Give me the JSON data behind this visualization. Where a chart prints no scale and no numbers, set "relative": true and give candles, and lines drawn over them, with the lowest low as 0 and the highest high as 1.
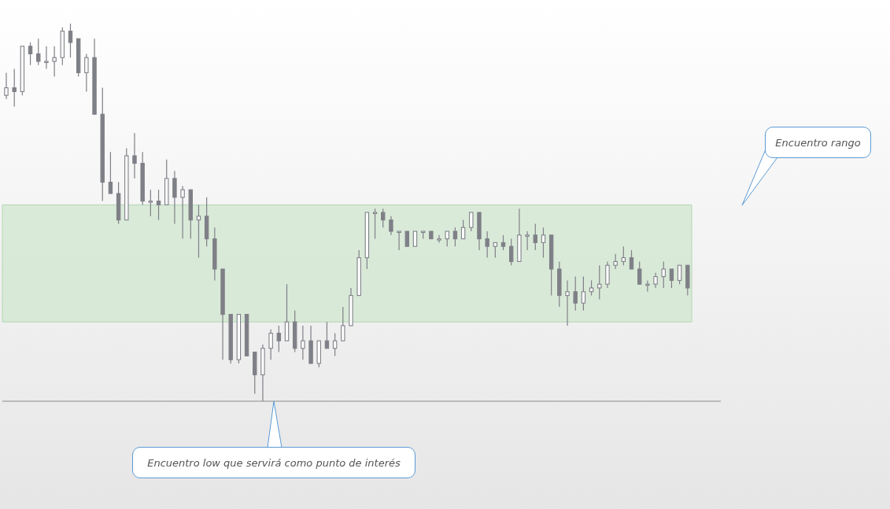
{
  "chart_data": {
    "type": "candlestick",
    "relative": true,
    "color": "#7f8087",
    "categories": [
      null,
      null,
      null,
      null,
      null,
      null,
      null,
      null,
      null,
      null,
      null,
      null,
      null,
      null,
      null,
      null,
      null,
      null,
      null,
      null,
      null,
      null,
      null,
      null,
      null,
      null,
      null,
      null,
      null,
      null,
      null,
      null,
      null,
      null,
      null,
      null,
      null,
      null,
      null,
      null,
      null,
      null,
      null,
      null,
      null,
      null,
      null,
      null,
      null,
      null,
      null,
      null,
      null,
      null,
      null,
      null,
      null,
      null,
      null,
      null,
      null,
      null,
      null,
      null,
      null,
      null,
      null,
      null,
      null,
      null,
      null,
      null,
      null,
      null,
      null,
      null,
      null,
      null,
      null,
      null,
      null,
      null,
      null,
      null,
      null,
      null
    ],
    "ohlc": [
      [
        0.81,
        0.87,
        0.8,
        0.83
      ],
      [
        0.83,
        0.88,
        0.78,
        0.82
      ],
      [
        0.82,
        0.94,
        0.81,
        0.94
      ],
      [
        0.94,
        0.95,
        0.89,
        0.92
      ],
      [
        0.92,
        0.96,
        0.89,
        0.9
      ],
      [
        0.9,
        0.94,
        0.88,
        0.9
      ],
      [
        0.9,
        0.94,
        0.86,
        0.91
      ],
      [
        0.91,
        0.99,
        0.89,
        0.98
      ],
      [
        0.98,
        1.0,
        0.91,
        0.95
      ],
      [
        0.96,
        0.96,
        0.86,
        0.87
      ],
      [
        0.87,
        0.92,
        0.82,
        0.91
      ],
      [
        0.91,
        0.96,
        0.76,
        0.76
      ],
      [
        0.76,
        0.83,
        0.53,
        0.58
      ],
      [
        0.58,
        0.66,
        0.55,
        0.55
      ],
      [
        0.55,
        0.58,
        0.47,
        0.48
      ],
      [
        0.48,
        0.67,
        0.48,
        0.65
      ],
      [
        0.65,
        0.71,
        0.59,
        0.63
      ],
      [
        0.63,
        0.66,
        0.52,
        0.53
      ],
      [
        0.53,
        0.56,
        0.49,
        0.53
      ],
      [
        0.53,
        0.56,
        0.48,
        0.52
      ],
      [
        0.52,
        0.64,
        0.52,
        0.59
      ],
      [
        0.59,
        0.61,
        0.47,
        0.54
      ],
      [
        0.54,
        0.57,
        0.43,
        0.56
      ],
      [
        0.56,
        0.56,
        0.43,
        0.48
      ],
      [
        0.48,
        0.52,
        0.38,
        0.49
      ],
      [
        0.49,
        0.54,
        0.41,
        0.43
      ],
      [
        0.43,
        0.46,
        0.32,
        0.35
      ],
      [
        0.35,
        0.35,
        0.11,
        0.23
      ],
      [
        0.23,
        0.23,
        0.1,
        0.11
      ],
      [
        0.11,
        0.23,
        0.1,
        0.23
      ],
      [
        0.23,
        0.23,
        0.12,
        0.12
      ],
      [
        0.13,
        0.13,
        0.02,
        0.07
      ],
      [
        0.07,
        0.15,
        0.0,
        0.14
      ],
      [
        0.14,
        0.19,
        0.11,
        0.18
      ],
      [
        0.18,
        0.2,
        0.13,
        0.16
      ],
      [
        0.16,
        0.31,
        0.16,
        0.21
      ],
      [
        0.21,
        0.24,
        0.13,
        0.14
      ],
      [
        0.14,
        0.2,
        0.11,
        0.16
      ],
      [
        0.16,
        0.2,
        0.1,
        0.1
      ],
      [
        0.1,
        0.16,
        0.09,
        0.16
      ],
      [
        0.16,
        0.21,
        0.14,
        0.14
      ],
      [
        0.14,
        0.18,
        0.12,
        0.16
      ],
      [
        0.16,
        0.25,
        0.16,
        0.2
      ],
      [
        0.2,
        0.3,
        0.2,
        0.28
      ],
      [
        0.28,
        0.4,
        0.28,
        0.38
      ],
      [
        0.38,
        0.5,
        0.35,
        0.5
      ],
      [
        0.5,
        0.51,
        0.43,
        0.5
      ],
      [
        0.5,
        0.51,
        0.46,
        0.48
      ],
      [
        0.48,
        0.49,
        0.44,
        0.45
      ],
      [
        0.45,
        0.45,
        0.4,
        0.45
      ],
      [
        0.45,
        0.45,
        0.41,
        0.41
      ],
      [
        0.41,
        0.45,
        0.41,
        0.45
      ],
      [
        0.45,
        0.45,
        0.43,
        0.45
      ],
      [
        0.45,
        0.45,
        0.43,
        0.43
      ],
      [
        0.43,
        0.44,
        0.42,
        0.43
      ],
      [
        0.43,
        0.45,
        0.41,
        0.45
      ],
      [
        0.45,
        0.46,
        0.41,
        0.43
      ],
      [
        0.43,
        0.48,
        0.43,
        0.46
      ],
      [
        0.46,
        0.5,
        0.45,
        0.5
      ],
      [
        0.5,
        0.5,
        0.4,
        0.43
      ],
      [
        0.43,
        0.45,
        0.38,
        0.41
      ],
      [
        0.41,
        0.42,
        0.38,
        0.42
      ],
      [
        0.42,
        0.44,
        0.4,
        0.41
      ],
      [
        0.41,
        0.43,
        0.36,
        0.37
      ],
      [
        0.37,
        0.51,
        0.37,
        0.44
      ],
      [
        0.44,
        0.45,
        0.4,
        0.44
      ],
      [
        0.44,
        0.47,
        0.4,
        0.42
      ],
      [
        0.42,
        0.46,
        0.38,
        0.44
      ],
      [
        0.44,
        0.44,
        0.28,
        0.35
      ],
      [
        0.35,
        0.37,
        0.25,
        0.28
      ],
      [
        0.28,
        0.32,
        0.2,
        0.29
      ],
      [
        0.29,
        0.33,
        0.24,
        0.26
      ],
      [
        0.26,
        0.33,
        0.24,
        0.29
      ],
      [
        0.29,
        0.32,
        0.28,
        0.3
      ],
      [
        0.3,
        0.36,
        0.27,
        0.31
      ],
      [
        0.31,
        0.37,
        0.3,
        0.36
      ],
      [
        0.36,
        0.39,
        0.35,
        0.37
      ],
      [
        0.37,
        0.41,
        0.36,
        0.38
      ],
      [
        0.38,
        0.4,
        0.35,
        0.35
      ],
      [
        0.35,
        0.37,
        0.31,
        0.31
      ],
      [
        0.31,
        0.32,
        0.29,
        0.31
      ],
      [
        0.31,
        0.34,
        0.3,
        0.33
      ],
      [
        0.33,
        0.37,
        0.3,
        0.35
      ],
      [
        0.35,
        0.35,
        0.3,
        0.32
      ],
      [
        0.32,
        0.36,
        0.31,
        0.36
      ],
      [
        0.36,
        0.36,
        0.28,
        0.3
      ]
    ],
    "bands": [
      {
        "axis": "y",
        "from": 0.21,
        "to": 0.52,
        "color": "#d5e8d4"
      }
    ],
    "ref_lines": [
      {
        "axis": "y",
        "value": 0,
        "color": "#8a8a8a"
      }
    ],
    "annotations": [
      "Encuentro rango",
      "Encuentro low que servirá como punto de interés"
    ]
  }
}
